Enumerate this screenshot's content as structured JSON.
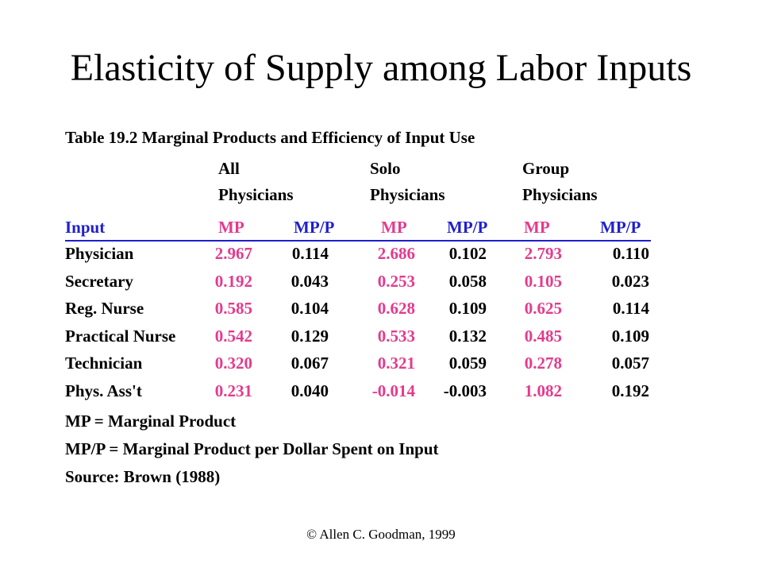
{
  "title": "Elasticity of Supply among Labor Inputs",
  "table": {
    "caption": "Table 19.2  Marginal Products and Efficiency of Input Use",
    "groups": [
      {
        "line1": "All",
        "line2": "Physicians"
      },
      {
        "line1": "Solo",
        "line2": "Physicians"
      },
      {
        "line1": "Group",
        "line2": "Physicians"
      }
    ],
    "headers": [
      "Input",
      "MP",
      "MP/P",
      "MP",
      "MP/P",
      "MP",
      "MP/P"
    ],
    "rows": [
      [
        "Physician",
        "2.967",
        "0.114",
        "2.686",
        "0.102",
        "2.793",
        "0.110"
      ],
      [
        "Secretary",
        "0.192",
        "0.043",
        "0.253",
        "0.058",
        "0.105",
        "0.023"
      ],
      [
        "Reg. Nurse",
        "0.585",
        "0.104",
        "0.628",
        "0.109",
        "0.625",
        "0.114"
      ],
      [
        "Practical Nurse",
        "0.542",
        "0.129",
        "0.533",
        "0.132",
        "0.485",
        "0.109"
      ],
      [
        "Technician",
        "0.320",
        "0.067",
        "0.321",
        "0.059",
        "0.278",
        "0.057"
      ],
      [
        "Phys. Ass't",
        "0.231",
        "0.040",
        "-0.014",
        "-0.003",
        "1.082",
        "0.192"
      ]
    ]
  },
  "notes": [
    "MP = Marginal Product",
    "MP/P = Marginal Product per Dollar Spent on Input",
    "Source: Brown (1988)"
  ],
  "footer": "© Allen C. Goodman, 1999",
  "colors": {
    "header": "#1f1fcc",
    "mp": "#e33b8d",
    "text": "#000000"
  }
}
